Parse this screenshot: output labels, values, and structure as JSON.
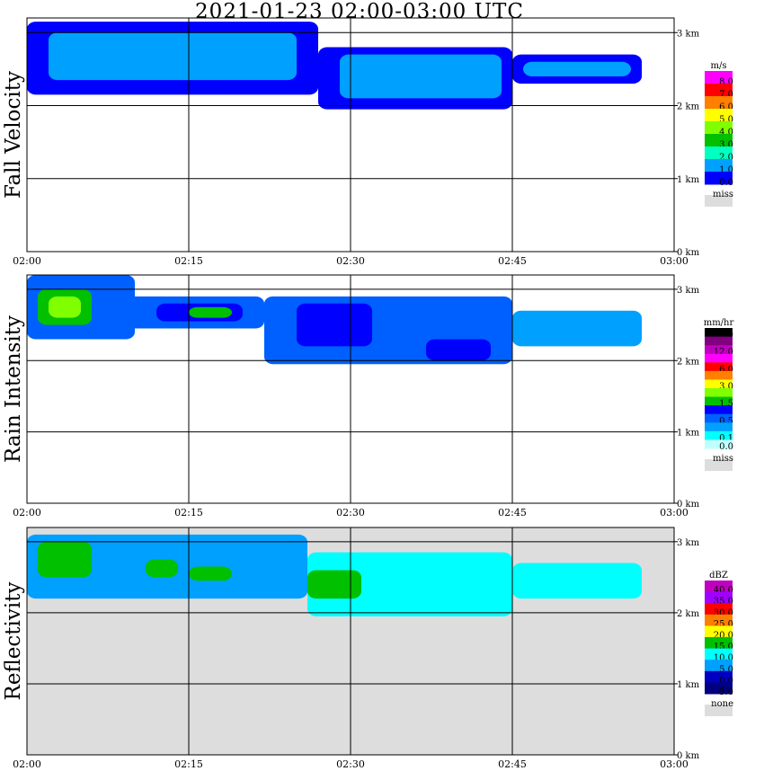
{
  "title": "2021-01-23   02:00-03:00 UTC",
  "chart_data": [
    {
      "type": "heatmap",
      "name": "fall-velocity",
      "ylabel": "Fall Velocity",
      "x_ticks": [
        "02:00",
        "02:15",
        "02:30",
        "02:45",
        "03:00"
      ],
      "y_ticks": [
        "0 km",
        "1 km",
        "2 km",
        "3 km"
      ],
      "legend": {
        "unit": "m/s",
        "bins": [
          {
            "label": "8.0",
            "color": "#ff00ff"
          },
          {
            "label": "7.0",
            "color": "#ff0000"
          },
          {
            "label": "6.0",
            "color": "#ff7f00"
          },
          {
            "label": "5.0",
            "color": "#ffff00"
          },
          {
            "label": "4.0",
            "color": "#7fff00"
          },
          {
            "label": "3.0",
            "color": "#00c000"
          },
          {
            "label": "2.0",
            "color": "#00ffc0"
          },
          {
            "label": "1.0",
            "color": "#00a0ff"
          },
          {
            "label": "0.0",
            "color": "#0000ff"
          }
        ],
        "miss_label": "miss",
        "miss_color": "#dddddd"
      },
      "background": "#ffffff",
      "blobs": [
        {
          "x0": 0,
          "x1": 27,
          "y0": 2.15,
          "y1": 3.15,
          "color": "#0000ff"
        },
        {
          "x0": 2,
          "x1": 25,
          "y0": 2.35,
          "y1": 3.0,
          "color": "#00a0ff"
        },
        {
          "x0": 27,
          "x1": 45,
          "y0": 1.95,
          "y1": 2.8,
          "color": "#0000ff"
        },
        {
          "x0": 29,
          "x1": 44,
          "y0": 2.1,
          "y1": 2.7,
          "color": "#00a0ff"
        },
        {
          "x0": 45,
          "x1": 57,
          "y0": 2.3,
          "y1": 2.7,
          "color": "#0000ff"
        },
        {
          "x0": 46,
          "x1": 56,
          "y0": 2.4,
          "y1": 2.6,
          "color": "#00a0ff"
        }
      ]
    },
    {
      "type": "heatmap",
      "name": "rain-intensity",
      "ylabel": "Rain Intensity",
      "x_ticks": [
        "02:00",
        "02:15",
        "02:30",
        "02:45",
        "03:00"
      ],
      "y_ticks": [
        "0 km",
        "1 km",
        "2 km",
        "3 km"
      ],
      "legend": {
        "unit": "mm/hr",
        "bins": [
          {
            "label": "48.0",
            "color": "#000000"
          },
          {
            "label": "",
            "color": "#800080"
          },
          {
            "label": "12.0",
            "color": "#c000c0"
          },
          {
            "label": "",
            "color": "#ff00ff"
          },
          {
            "label": "6.0",
            "color": "#ff0000"
          },
          {
            "label": "",
            "color": "#ff8000"
          },
          {
            "label": "3.0",
            "color": "#ffff00"
          },
          {
            "label": "",
            "color": "#80ff00"
          },
          {
            "label": "1.5",
            "color": "#00c000"
          },
          {
            "label": "",
            "color": "#0000ff"
          },
          {
            "label": "0.5",
            "color": "#0060ff"
          },
          {
            "label": "",
            "color": "#00a0ff"
          },
          {
            "label": "0.1",
            "color": "#00ffff"
          },
          {
            "label": "0.0",
            "color": "#c0ffff"
          }
        ],
        "miss_label": "miss",
        "miss_color": "#dddddd"
      },
      "background": "#ffffff",
      "blobs": [
        {
          "x0": 0,
          "x1": 10,
          "y0": 2.3,
          "y1": 3.2,
          "color": "#0060ff"
        },
        {
          "x0": 1,
          "x1": 6,
          "y0": 2.5,
          "y1": 3.0,
          "color": "#00c000"
        },
        {
          "x0": 2,
          "x1": 5,
          "y0": 2.6,
          "y1": 2.9,
          "color": "#80ff00"
        },
        {
          "x0": 9,
          "x1": 22,
          "y0": 2.45,
          "y1": 2.9,
          "color": "#0060ff"
        },
        {
          "x0": 12,
          "x1": 20,
          "y0": 2.55,
          "y1": 2.8,
          "color": "#0000ff"
        },
        {
          "x0": 15,
          "x1": 19,
          "y0": 2.6,
          "y1": 2.75,
          "color": "#00c000"
        },
        {
          "x0": 22,
          "x1": 45,
          "y0": 1.95,
          "y1": 2.9,
          "color": "#0060ff"
        },
        {
          "x0": 25,
          "x1": 32,
          "y0": 2.2,
          "y1": 2.8,
          "color": "#0000ff"
        },
        {
          "x0": 37,
          "x1": 43,
          "y0": 2.0,
          "y1": 2.3,
          "color": "#0000ff"
        },
        {
          "x0": 45,
          "x1": 57,
          "y0": 2.2,
          "y1": 2.7,
          "color": "#00a0ff"
        }
      ]
    },
    {
      "type": "heatmap",
      "name": "reflectivity",
      "ylabel": "Reflectivity",
      "x_ticks": [
        "02:00",
        "02:15",
        "02:30",
        "02:45",
        "03:00"
      ],
      "y_ticks": [
        "0 km",
        "1 km",
        "2 km",
        "3 km"
      ],
      "legend": {
        "unit": "dBZ",
        "bins": [
          {
            "label": "40.0",
            "color": "#c000c0"
          },
          {
            "label": "35.0",
            "color": "#a000ff"
          },
          {
            "label": "30.0",
            "color": "#ff0000"
          },
          {
            "label": "25.0",
            "color": "#ff8000"
          },
          {
            "label": "20.0",
            "color": "#ffff00"
          },
          {
            "label": "15.0",
            "color": "#00c000"
          },
          {
            "label": "10.0",
            "color": "#00ffff"
          },
          {
            "label": "5.0",
            "color": "#00a0ff"
          },
          {
            "label": "0.0",
            "color": "#0000c0"
          },
          {
            "label": "-5.0",
            "color": "#000080"
          }
        ],
        "miss_label": "none",
        "miss_color": "#dddddd"
      },
      "background": "#dddddd",
      "blobs": [
        {
          "x0": 0,
          "x1": 26,
          "y0": 2.2,
          "y1": 3.1,
          "color": "#00a0ff"
        },
        {
          "x0": 1,
          "x1": 6,
          "y0": 2.5,
          "y1": 3.0,
          "color": "#00c000"
        },
        {
          "x0": 11,
          "x1": 14,
          "y0": 2.5,
          "y1": 2.75,
          "color": "#00c000"
        },
        {
          "x0": 15,
          "x1": 19,
          "y0": 2.45,
          "y1": 2.65,
          "color": "#00c000"
        },
        {
          "x0": 26,
          "x1": 45,
          "y0": 1.95,
          "y1": 2.85,
          "color": "#00ffff"
        },
        {
          "x0": 26,
          "x1": 31,
          "y0": 2.2,
          "y1": 2.6,
          "color": "#00c000"
        },
        {
          "x0": 45,
          "x1": 57,
          "y0": 2.2,
          "y1": 2.7,
          "color": "#00ffff"
        }
      ]
    }
  ]
}
